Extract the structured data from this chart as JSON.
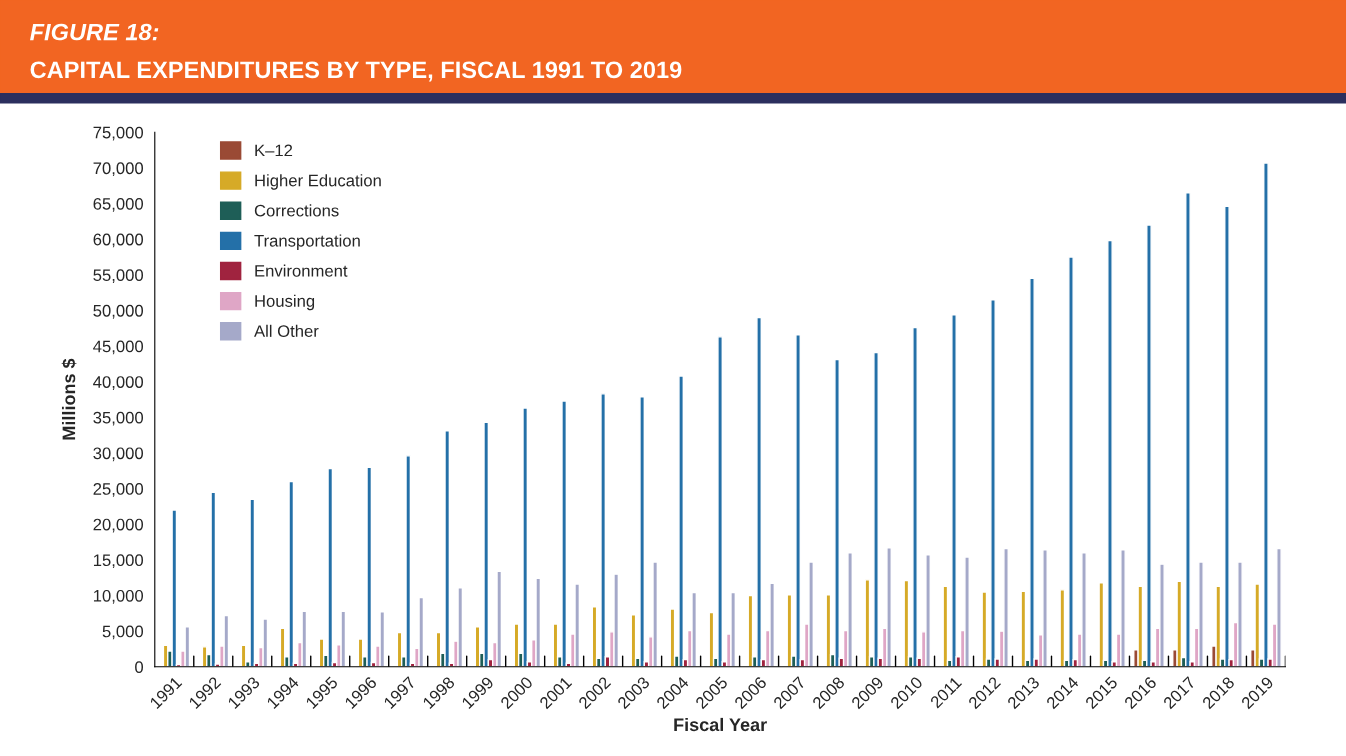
{
  "chart_data": {
    "type": "bar",
    "title": "FIGURE 18:",
    "subtitle": "CAPITAL EXPENDITURES BY TYPE, FISCAL 1991 TO 2019",
    "xlabel": "Fiscal Year",
    "ylabel": "Millions $",
    "categories": [
      "1991",
      "1992",
      "1993",
      "1994",
      "1995",
      "1996",
      "1997",
      "1998",
      "1999",
      "2000",
      "2001",
      "2002",
      "2003",
      "2004",
      "2005",
      "2006",
      "2007",
      "2008",
      "2009",
      "2010",
      "2011",
      "2012",
      "2013",
      "2014",
      "2015",
      "2016",
      "2017",
      "2018",
      "2019"
    ],
    "series": [
      {
        "name": "K–12",
        "color": "#9a4a35",
        "values": [
          null,
          null,
          null,
          null,
          null,
          null,
          null,
          null,
          null,
          null,
          null,
          null,
          null,
          null,
          null,
          null,
          null,
          null,
          null,
          null,
          null,
          null,
          null,
          null,
          null,
          2400,
          2400,
          2900,
          2400
        ]
      },
      {
        "name": "Higher Education",
        "color": "#d6aa27",
        "values": [
          3000,
          2800,
          3000,
          5400,
          3900,
          3900,
          4800,
          4800,
          5600,
          6000,
          6000,
          8400,
          7300,
          8100,
          7600,
          10000,
          10100,
          10100,
          12200,
          12100,
          11300,
          10500,
          10600,
          10800,
          11800,
          11300,
          12000,
          11300,
          11600
        ]
      },
      {
        "name": "Corrections",
        "color": "#1e5e57",
        "values": [
          2200,
          1700,
          700,
          1400,
          1600,
          1400,
          1400,
          1900,
          1900,
          1900,
          1400,
          1200,
          1200,
          1500,
          1200,
          1400,
          1500,
          1700,
          1400,
          1400,
          900,
          1100,
          900,
          900,
          900,
          900,
          1300,
          1100,
          1100
        ]
      },
      {
        "name": "Transportation",
        "color": "#2470a8",
        "values": [
          22000,
          24500,
          23500,
          26000,
          27800,
          28000,
          29600,
          33100,
          34300,
          36300,
          37300,
          38300,
          37900,
          40800,
          46300,
          49000,
          46600,
          43100,
          44100,
          47600,
          49400,
          51500,
          54500,
          57500,
          59800,
          62000,
          66500,
          64600,
          70700
        ]
      },
      {
        "name": "Environment",
        "color": "#a0233f",
        "values": [
          300,
          400,
          500,
          500,
          600,
          600,
          500,
          500,
          1000,
          700,
          500,
          1400,
          700,
          1000,
          700,
          1000,
          1000,
          1200,
          1200,
          1200,
          1400,
          1100,
          1100,
          1000,
          700,
          700,
          700,
          1000,
          1100
        ]
      },
      {
        "name": "Housing",
        "color": "#dfa6c6",
        "values": [
          2200,
          2900,
          2700,
          3400,
          3100,
          2900,
          2600,
          3600,
          3400,
          3800,
          4600,
          4900,
          4200,
          5100,
          4600,
          5100,
          6000,
          5100,
          5400,
          4900,
          5100,
          5000,
          4500,
          4600,
          4600,
          5400,
          5400,
          6200,
          6000
        ]
      },
      {
        "name": "All Other",
        "color": "#a5a9c9",
        "values": [
          5600,
          7200,
          6700,
          7800,
          7800,
          7700,
          9700,
          11100,
          13400,
          12400,
          11600,
          13000,
          14700,
          10400,
          10400,
          11700,
          14700,
          16000,
          16700,
          15700,
          15400,
          16600,
          16400,
          16000,
          16400,
          14400,
          14700,
          14700,
          16600
        ]
      }
    ],
    "ylim": [
      0,
      75000
    ],
    "yticks": [
      {
        "value": 0,
        "label": "0"
      },
      {
        "value": 5000,
        "label": "5,000"
      },
      {
        "value": 10000,
        "label": "10,000"
      },
      {
        "value": 15000,
        "label": "15,000"
      },
      {
        "value": 20000,
        "label": "20,000"
      },
      {
        "value": 25000,
        "label": "25,000"
      },
      {
        "value": 30000,
        "label": "30,000"
      },
      {
        "value": 35000,
        "label": "35,000"
      },
      {
        "value": 40000,
        "label": "40,000"
      },
      {
        "value": 45000,
        "label": "45,000"
      },
      {
        "value": 50000,
        "label": "50,000"
      },
      {
        "value": 55000,
        "label": "55,000"
      },
      {
        "value": 60000,
        "label": "60,000"
      },
      {
        "value": 65000,
        "label": "65,000"
      },
      {
        "value": 70000,
        "label": "70,000"
      },
      {
        "value": 75000,
        "label": "75,000"
      }
    ],
    "grid": false,
    "legend": "top left"
  }
}
